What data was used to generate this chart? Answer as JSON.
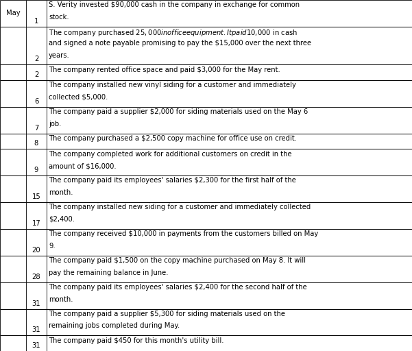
{
  "rows": [
    {
      "month": "May",
      "day": "1",
      "description": "S. Verity invested $90,000 cash in the company in exchange for common\nstock.",
      "nlines": 2
    },
    {
      "month": "",
      "day": "2",
      "description": "The company purchased $25,000 in office equipment. It paid $10,000 in cash\nand signed a note payable promising to pay the $15,000 over the next three\nyears.",
      "nlines": 3
    },
    {
      "month": "",
      "day": "2",
      "description": "The company rented office space and paid $3,000 for the May rent.",
      "nlines": 1
    },
    {
      "month": "",
      "day": "6",
      "description": "The company installed new vinyl siding for a customer and immediately\ncollected $5,000.",
      "nlines": 2
    },
    {
      "month": "",
      "day": "7",
      "description": "The company paid a supplier $2,000 for siding materials used on the May 6\njob.",
      "nlines": 2
    },
    {
      "month": "",
      "day": "8",
      "description": "The company purchased a $2,500 copy machine for office use on credit.",
      "nlines": 1
    },
    {
      "month": "",
      "day": "9",
      "description": "The company completed work for additional customers on credit in the\namount of $16,000.",
      "nlines": 2
    },
    {
      "month": "",
      "day": "15",
      "description": "The company paid its employees' salaries $2,300 for the first half of the\nmonth.",
      "nlines": 2
    },
    {
      "month": "",
      "day": "17",
      "description": "The company installed new siding for a customer and immediately collected\n$2,400.",
      "nlines": 2
    },
    {
      "month": "",
      "day": "20",
      "description": "The company received $10,000 in payments from the customers billed on May\n9.",
      "nlines": 2
    },
    {
      "month": "",
      "day": "28",
      "description": "The company paid $1,500 on the copy machine purchased on May 8. It will\npay the remaining balance in June.",
      "nlines": 2
    },
    {
      "month": "",
      "day": "31",
      "description": "The company paid its employees' salaries $2,400 for the second half of the\nmonth.",
      "nlines": 2
    },
    {
      "month": "",
      "day": "31",
      "description": "The company paid a supplier $5,300 for siding materials used on the\nremaining jobs completed during May.",
      "nlines": 2
    },
    {
      "month": "",
      "day": "31",
      "description": "The company paid $450 for this month's utility bill.",
      "nlines": 1
    }
  ],
  "bg_color": "#ffffff",
  "line_color": "#000000",
  "font_size": 7.2,
  "font_family": "Times New Roman"
}
